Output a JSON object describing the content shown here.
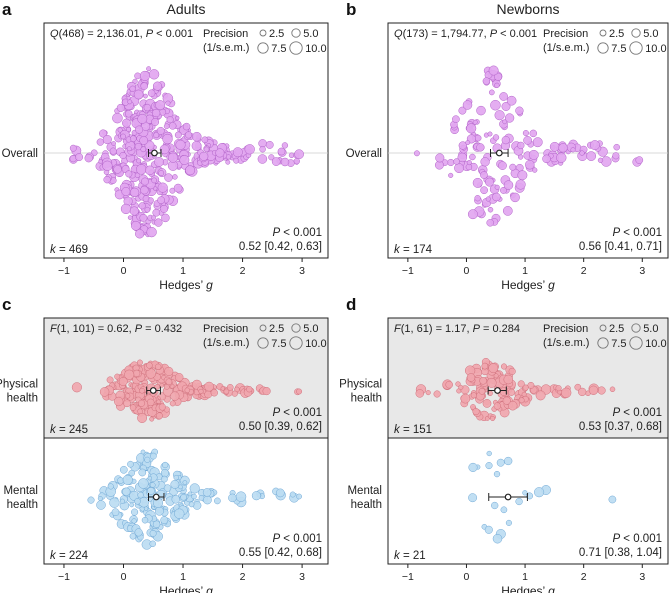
{
  "figure": {
    "legend": {
      "title_line1": "Precision",
      "title_line2": "(1/s.e.m.)",
      "sizes": [
        "2.5",
        "5.0",
        "7.5",
        "10.0"
      ]
    },
    "x_axis": {
      "label_prefix": "Hedges’ ",
      "label_italic": "g",
      "ticks": [
        "−1",
        "0",
        "1",
        "2",
        "3"
      ]
    },
    "colors": {
      "adult_overall": "#e2a6f0",
      "adult_overall_stroke": "#b060c8",
      "newborn_overall": "#e2a6f0",
      "newborn_overall_stroke": "#b060c8",
      "physical": "#f0a6ae",
      "physical_stroke": "#d0707c",
      "mental": "#bcdcf2",
      "mental_stroke": "#6fa8d6",
      "shaded_bg": "#e8e8e8",
      "reference_line": "#cccccc"
    }
  },
  "chart_data": [
    {
      "panel": "a",
      "type": "scatter",
      "title": "Adults",
      "xlabel": "Hedges’ g",
      "xlim": [
        -1.1,
        3.2
      ],
      "header_stat": {
        "pre": "Q(468) = 2,136.01, ",
        "p_label": "P",
        "p_value": " < 0.001"
      },
      "rows": [
        {
          "label_lines": [
            "Overall"
          ],
          "k_label": "k = 469",
          "k": 469,
          "estimate": 0.52,
          "ci": [
            0.42,
            0.63
          ],
          "p_text": "P < 0.001",
          "estimate_text": "0.52 [0.42, 0.63]"
        }
      ]
    },
    {
      "panel": "b",
      "type": "scatter",
      "title": "Newborns",
      "xlabel": "Hedges’ g",
      "xlim": [
        -1.1,
        3.2
      ],
      "header_stat": {
        "pre": "Q(173) = 1,794.77, ",
        "p_label": "P",
        "p_value": " < 0.001"
      },
      "rows": [
        {
          "label_lines": [
            "Overall"
          ],
          "k_label": "k = 174",
          "k": 174,
          "estimate": 0.56,
          "ci": [
            0.41,
            0.71
          ],
          "p_text": "P < 0.001",
          "estimate_text": "0.56 [0.41, 0.71]"
        }
      ]
    },
    {
      "panel": "c",
      "type": "scatter",
      "title": "",
      "xlabel": "Hedges’ g",
      "xlim": [
        -1.1,
        3.2
      ],
      "header_stat": {
        "pre": "F(1, 101) = 0.62, ",
        "p_label": "P",
        "p_value": " = 0.432"
      },
      "rows": [
        {
          "label_lines": [
            "Physical",
            "health"
          ],
          "k_label": "k = 245",
          "k": 245,
          "estimate": 0.5,
          "ci": [
            0.39,
            0.62
          ],
          "p_text": "P < 0.001",
          "estimate_text": "0.50 [0.39, 0.62]"
        },
        {
          "label_lines": [
            "Mental",
            "health"
          ],
          "k_label": "k = 224",
          "k": 224,
          "estimate": 0.55,
          "ci": [
            0.42,
            0.68
          ],
          "p_text": "P < 0.001",
          "estimate_text": "0.55 [0.42, 0.68]"
        }
      ]
    },
    {
      "panel": "d",
      "type": "scatter",
      "title": "",
      "xlabel": "Hedges’ g",
      "xlim": [
        -1.1,
        3.2
      ],
      "header_stat": {
        "pre": "F(1, 61) = 1.17, ",
        "p_label": "P",
        "p_value": " = 0.284"
      },
      "rows": [
        {
          "label_lines": [
            "Physical",
            "health"
          ],
          "k_label": "k = 151",
          "k": 151,
          "estimate": 0.53,
          "ci": [
            0.37,
            0.68
          ],
          "p_text": "P < 0.001",
          "estimate_text": "0.53 [0.37, 0.68]"
        },
        {
          "label_lines": [
            "Mental",
            "health"
          ],
          "k_label": "k = 21",
          "k": 21,
          "estimate": 0.71,
          "ci": [
            0.38,
            1.04
          ],
          "p_text": "P < 0.001",
          "estimate_text": "0.71 [0.38, 1.04]"
        }
      ]
    }
  ]
}
